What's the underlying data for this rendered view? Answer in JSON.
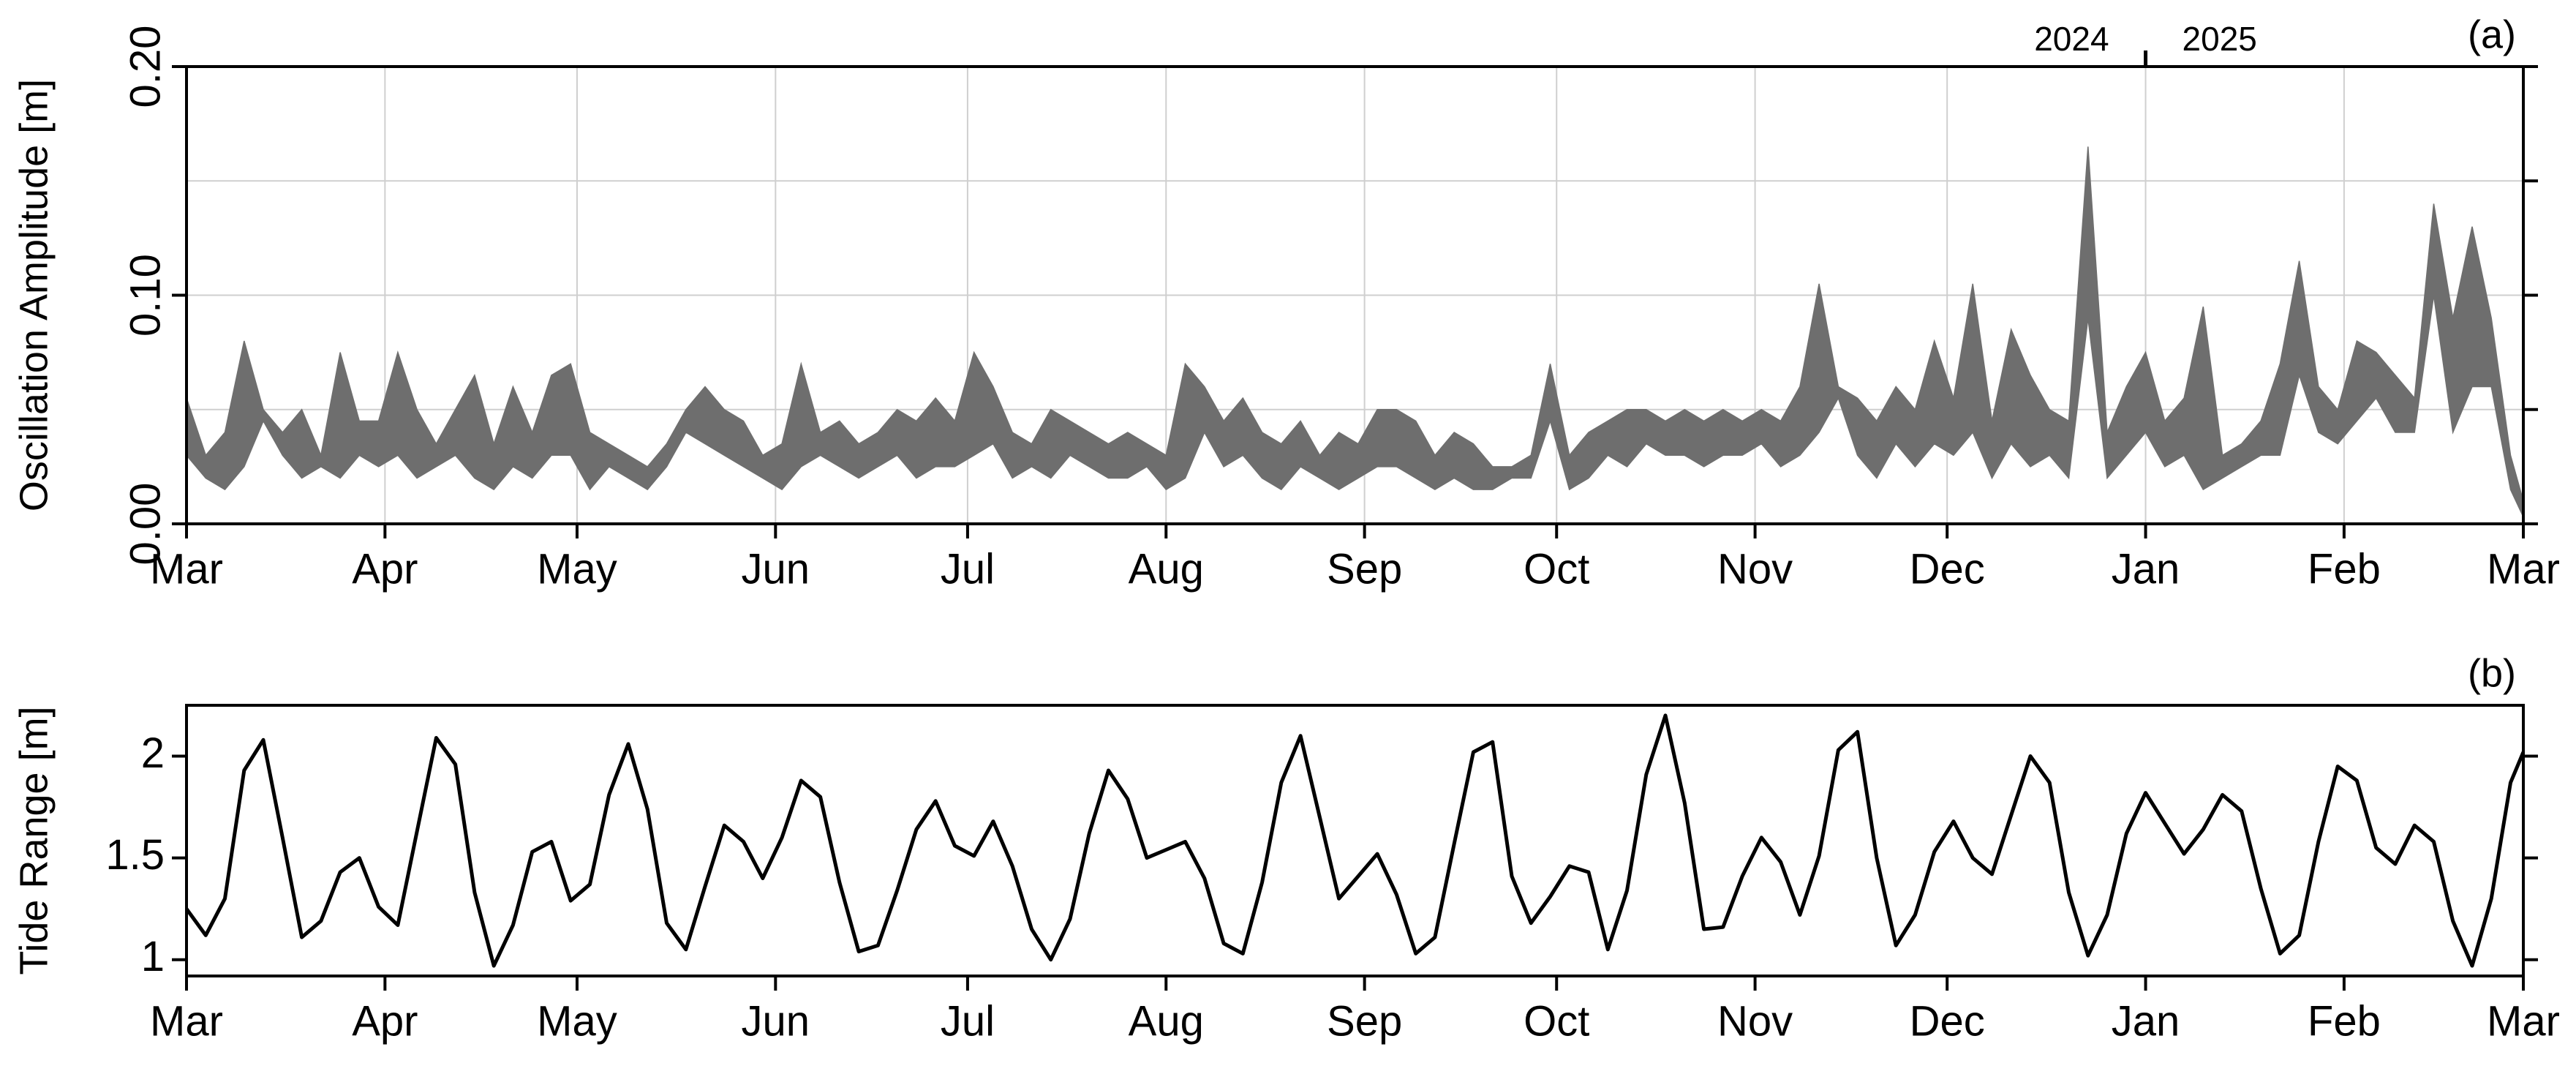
{
  "chart_data": [
    {
      "type": "band",
      "ylabel": "Oscillation Amplitude [m]",
      "panel_label": "(a)",
      "color": "#6e6e6e",
      "grid": true,
      "ytick_label_rotated": true,
      "xlim": [
        0,
        365
      ],
      "xticks": [
        {
          "value": 0,
          "label": "Mar"
        },
        {
          "value": 31,
          "label": "Apr"
        },
        {
          "value": 61,
          "label": "May"
        },
        {
          "value": 92,
          "label": "Jun"
        },
        {
          "value": 122,
          "label": "Jul"
        },
        {
          "value": 153,
          "label": "Aug"
        },
        {
          "value": 184,
          "label": "Sep"
        },
        {
          "value": 214,
          "label": "Oct"
        },
        {
          "value": 245,
          "label": "Nov"
        },
        {
          "value": 275,
          "label": "Dec"
        },
        {
          "value": 306,
          "label": "Jan"
        },
        {
          "value": 337,
          "label": "Feb"
        },
        {
          "value": 365,
          "label": "Mar"
        }
      ],
      "ylim": [
        0,
        0.2
      ],
      "yticks": [
        {
          "value": 0,
          "label": "0.00"
        },
        {
          "value": 0.1,
          "label": "0.10"
        },
        {
          "value": 0.2,
          "label": "0.20"
        }
      ],
      "yminor": [
        0.05,
        0.15
      ],
      "year_marker": {
        "x": 306,
        "labels": [
          "2024",
          "2025"
        ]
      },
      "x": [
        0,
        3,
        6,
        9,
        12,
        15,
        18,
        21,
        24,
        27,
        30,
        33,
        36,
        39,
        42,
        45,
        48,
        51,
        54,
        57,
        60,
        63,
        66,
        69,
        72,
        75,
        78,
        81,
        84,
        87,
        90,
        93,
        96,
        99,
        102,
        105,
        108,
        111,
        114,
        117,
        120,
        123,
        126,
        129,
        132,
        135,
        138,
        141,
        144,
        147,
        150,
        153,
        156,
        159,
        162,
        165,
        168,
        171,
        174,
        177,
        180,
        183,
        186,
        189,
        192,
        195,
        198,
        201,
        204,
        207,
        210,
        213,
        216,
        219,
        222,
        225,
        228,
        231,
        234,
        237,
        240,
        243,
        246,
        249,
        252,
        255,
        258,
        261,
        264,
        267,
        270,
        273,
        276,
        279,
        282,
        285,
        288,
        291,
        294,
        297,
        300,
        303,
        306,
        309,
        312,
        315,
        318,
        321,
        324,
        327,
        330,
        333,
        336,
        339,
        342,
        345,
        348,
        351,
        354,
        357,
        360,
        363,
        365
      ],
      "lower": [
        0.03,
        0.02,
        0.015,
        0.025,
        0.045,
        0.03,
        0.02,
        0.025,
        0.02,
        0.03,
        0.025,
        0.03,
        0.02,
        0.025,
        0.03,
        0.02,
        0.015,
        0.025,
        0.02,
        0.03,
        0.03,
        0.015,
        0.025,
        0.02,
        0.015,
        0.025,
        0.04,
        0.035,
        0.03,
        0.025,
        0.02,
        0.015,
        0.025,
        0.03,
        0.025,
        0.02,
        0.025,
        0.03,
        0.02,
        0.025,
        0.025,
        0.03,
        0.035,
        0.02,
        0.025,
        0.02,
        0.03,
        0.025,
        0.02,
        0.02,
        0.025,
        0.015,
        0.02,
        0.04,
        0.025,
        0.03,
        0.02,
        0.015,
        0.025,
        0.02,
        0.015,
        0.02,
        0.025,
        0.025,
        0.02,
        0.015,
        0.02,
        0.015,
        0.015,
        0.02,
        0.02,
        0.045,
        0.015,
        0.02,
        0.03,
        0.025,
        0.035,
        0.03,
        0.03,
        0.025,
        0.03,
        0.03,
        0.035,
        0.025,
        0.03,
        0.04,
        0.055,
        0.03,
        0.02,
        0.035,
        0.025,
        0.035,
        0.03,
        0.04,
        0.02,
        0.035,
        0.025,
        0.03,
        0.02,
        0.09,
        0.02,
        0.03,
        0.04,
        0.025,
        0.03,
        0.015,
        0.02,
        0.025,
        0.03,
        0.03,
        0.065,
        0.04,
        0.035,
        0.045,
        0.055,
        0.04,
        0.04,
        0.1,
        0.04,
        0.06,
        0.06,
        0.015,
        0.003
      ],
      "upper": [
        0.055,
        0.03,
        0.04,
        0.08,
        0.05,
        0.04,
        0.05,
        0.03,
        0.075,
        0.045,
        0.045,
        0.075,
        0.05,
        0.035,
        0.05,
        0.065,
        0.035,
        0.06,
        0.04,
        0.065,
        0.07,
        0.04,
        0.035,
        0.03,
        0.025,
        0.035,
        0.05,
        0.06,
        0.05,
        0.045,
        0.03,
        0.035,
        0.07,
        0.04,
        0.045,
        0.035,
        0.04,
        0.05,
        0.045,
        0.055,
        0.045,
        0.075,
        0.06,
        0.04,
        0.035,
        0.05,
        0.045,
        0.04,
        0.035,
        0.04,
        0.035,
        0.03,
        0.07,
        0.06,
        0.045,
        0.055,
        0.04,
        0.035,
        0.045,
        0.03,
        0.04,
        0.035,
        0.05,
        0.05,
        0.045,
        0.03,
        0.04,
        0.035,
        0.025,
        0.025,
        0.03,
        0.07,
        0.03,
        0.04,
        0.045,
        0.05,
        0.05,
        0.045,
        0.05,
        0.045,
        0.05,
        0.045,
        0.05,
        0.045,
        0.06,
        0.105,
        0.06,
        0.055,
        0.045,
        0.06,
        0.05,
        0.08,
        0.055,
        0.105,
        0.045,
        0.085,
        0.065,
        0.05,
        0.045,
        0.165,
        0.04,
        0.06,
        0.075,
        0.045,
        0.055,
        0.095,
        0.03,
        0.035,
        0.045,
        0.07,
        0.115,
        0.06,
        0.05,
        0.08,
        0.075,
        0.065,
        0.055,
        0.14,
        0.09,
        0.13,
        0.09,
        0.03,
        0.01
      ]
    },
    {
      "type": "line",
      "ylabel": "Tide Range [m]",
      "panel_label": "(b)",
      "color": "#000000",
      "grid": false,
      "ytick_label_rotated": false,
      "xlim": [
        0,
        365
      ],
      "xticks": [
        {
          "value": 0,
          "label": "Mar"
        },
        {
          "value": 31,
          "label": "Apr"
        },
        {
          "value": 61,
          "label": "May"
        },
        {
          "value": 92,
          "label": "Jun"
        },
        {
          "value": 122,
          "label": "Jul"
        },
        {
          "value": 153,
          "label": "Aug"
        },
        {
          "value": 184,
          "label": "Sep"
        },
        {
          "value": 214,
          "label": "Oct"
        },
        {
          "value": 245,
          "label": "Nov"
        },
        {
          "value": 275,
          "label": "Dec"
        },
        {
          "value": 306,
          "label": "Jan"
        },
        {
          "value": 337,
          "label": "Feb"
        },
        {
          "value": 365,
          "label": "Mar"
        }
      ],
      "ylim": [
        0.92,
        2.25
      ],
      "yticks": [
        1,
        1.5,
        2
      ],
      "x": [
        0,
        3,
        6,
        9,
        12,
        15,
        18,
        21,
        24,
        27,
        30,
        33,
        36,
        39,
        42,
        45,
        48,
        51,
        54,
        57,
        60,
        63,
        66,
        69,
        72,
        75,
        78,
        81,
        84,
        87,
        90,
        93,
        96,
        99,
        102,
        105,
        108,
        111,
        114,
        117,
        120,
        123,
        126,
        129,
        132,
        135,
        138,
        141,
        144,
        147,
        150,
        153,
        156,
        159,
        162,
        165,
        168,
        171,
        174,
        177,
        180,
        183,
        186,
        189,
        192,
        195,
        198,
        201,
        204,
        207,
        210,
        213,
        216,
        219,
        222,
        225,
        228,
        231,
        234,
        237,
        240,
        243,
        246,
        249,
        252,
        255,
        258,
        261,
        264,
        267,
        270,
        273,
        276,
        279,
        282,
        285,
        288,
        291,
        294,
        297,
        300,
        303,
        306,
        309,
        312,
        315,
        318,
        321,
        324,
        327,
        330,
        333,
        336,
        339,
        342,
        345,
        348,
        351,
        354,
        357,
        360,
        363,
        365
      ],
      "values": [
        1.25,
        1.12,
        1.3,
        1.93,
        2.08,
        1.6,
        1.11,
        1.19,
        1.43,
        1.5,
        1.26,
        1.17,
        1.63,
        2.09,
        1.96,
        1.33,
        0.97,
        1.17,
        1.53,
        1.58,
        1.29,
        1.37,
        1.81,
        2.06,
        1.74,
        1.18,
        1.05,
        1.36,
        1.66,
        1.58,
        1.4,
        1.6,
        1.88,
        1.8,
        1.38,
        1.04,
        1.07,
        1.34,
        1.64,
        1.78,
        1.56,
        1.51,
        1.68,
        1.46,
        1.15,
        1.0,
        1.2,
        1.62,
        1.93,
        1.79,
        1.5,
        1.54,
        1.58,
        1.4,
        1.08,
        1.03,
        1.38,
        1.87,
        2.1,
        1.7,
        1.3,
        1.41,
        1.52,
        1.32,
        1.03,
        1.11,
        1.57,
        2.02,
        2.07,
        1.41,
        1.18,
        1.31,
        1.46,
        1.43,
        1.05,
        1.34,
        1.91,
        2.2,
        1.77,
        1.15,
        1.16,
        1.41,
        1.6,
        1.48,
        1.22,
        1.51,
        2.03,
        2.12,
        1.5,
        1.07,
        1.22,
        1.53,
        1.68,
        1.5,
        1.42,
        1.71,
        2.0,
        1.87,
        1.33,
        1.02,
        1.22,
        1.62,
        1.82,
        1.67,
        1.52,
        1.64,
        1.81,
        1.73,
        1.35,
        1.03,
        1.12,
        1.58,
        1.95,
        1.88,
        1.55,
        1.47,
        1.66,
        1.58,
        1.19,
        0.97,
        1.3,
        1.87,
        2.02
      ]
    }
  ]
}
